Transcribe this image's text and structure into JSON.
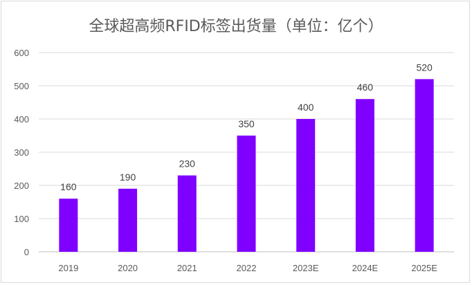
{
  "chart_data": {
    "type": "bar",
    "title": "全球超高频RFID标签出货量（单位：亿个）",
    "categories": [
      "2019",
      "2020",
      "2021",
      "2022",
      "2023E",
      "2024E",
      "2025E"
    ],
    "values": [
      160,
      190,
      230,
      350,
      400,
      460,
      520
    ],
    "ylim": [
      0,
      600
    ],
    "yticks": [
      "0",
      "100",
      "200",
      "300",
      "400",
      "500",
      "600"
    ],
    "grid": true,
    "data_labels": true,
    "colors": {
      "bar": "#7f00ff",
      "grid": "#d9d9d9",
      "axis": "#bfbfbf"
    }
  }
}
